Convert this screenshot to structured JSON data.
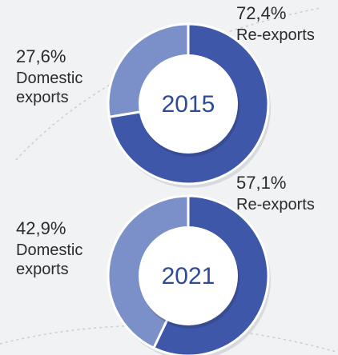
{
  "chart_data": [
    {
      "type": "pie",
      "title": "2015",
      "categories": [
        "Re-exports",
        "Domestic exports"
      ],
      "values": [
        72.4,
        27.6
      ],
      "value_labels": [
        "72,4%",
        "27,6%"
      ],
      "colors": [
        "#3f57a8",
        "#7b90c9"
      ]
    },
    {
      "type": "pie",
      "title": "2021",
      "categories": [
        "Re-exports",
        "Domestic exports"
      ],
      "values": [
        57.1,
        42.9
      ],
      "value_labels": [
        "57,1%",
        "42,9%"
      ],
      "colors": [
        "#3f57a8",
        "#7b90c9"
      ]
    }
  ]
}
